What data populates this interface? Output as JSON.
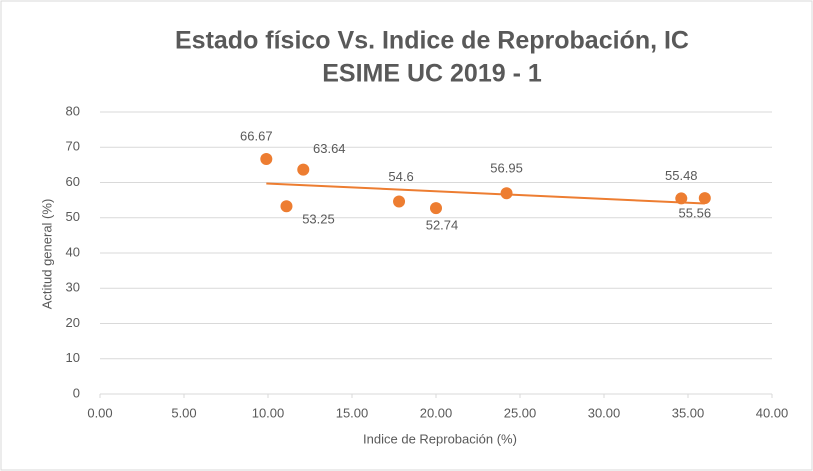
{
  "chart_data": {
    "type": "scatter",
    "title": [
      "Estado físico Vs. Indice de Reprobación, IC",
      "ESIME UC 2019 - 1"
    ],
    "x_label": "Indice de Reprobación (%)",
    "y_label": "Actitud general (%)",
    "series": [
      {
        "color": "#ed7d31",
        "x": [
          9.9,
          12.1,
          11.1,
          17.8,
          20.0,
          24.2,
          34.6,
          36.0
        ],
        "values": [
          66.67,
          63.64,
          53.25,
          54.6,
          52.74,
          56.95,
          55.48,
          55.56
        ]
      }
    ],
    "trendline": true,
    "xlim": [
      0,
      40
    ],
    "xticks": [
      {
        "value": 0,
        "label": "0.00"
      },
      {
        "value": 5,
        "label": "5.00"
      },
      {
        "value": 10,
        "label": "10.00"
      },
      {
        "value": 15,
        "label": "15.00"
      },
      {
        "value": 20,
        "label": "20.00"
      },
      {
        "value": 25,
        "label": "25.00"
      },
      {
        "value": 30,
        "label": "30.00"
      },
      {
        "value": 35,
        "label": "35.00"
      },
      {
        "value": 40,
        "label": "40.00"
      }
    ],
    "ylim": [
      0,
      80
    ],
    "yticks": [
      0,
      10,
      20,
      30,
      40,
      50,
      60,
      70,
      80
    ],
    "grid": true
  }
}
